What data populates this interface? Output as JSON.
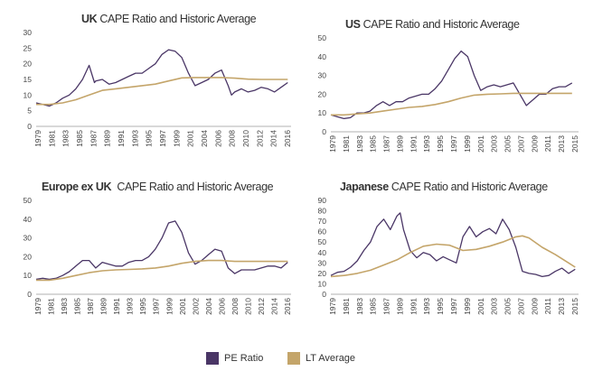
{
  "legend": {
    "pe_label": "PE Ratio",
    "lt_label": "LT Average",
    "pe_color": "#4a3666",
    "lt_color": "#c4a56a"
  },
  "chart_data": [
    {
      "type": "line",
      "title_bold": "UK",
      "title_rest": " CAPE Ratio and Historic Average",
      "ylim": [
        0,
        30
      ],
      "yticks": [
        0,
        5,
        10,
        15,
        20,
        25,
        30
      ],
      "xlim": [
        1979,
        2017.5
      ],
      "xticks": [
        "1979",
        "1981",
        "1983",
        "1985",
        "1987",
        "1989",
        "1991",
        "1993",
        "1995",
        "1997",
        "1999",
        "2001",
        "2004",
        "2006",
        "2008",
        "2010",
        "2012",
        "2014",
        "2016"
      ],
      "series": [
        {
          "name": "PE Ratio",
          "x": [
            1979,
            1980,
            1981,
            1982,
            1983,
            1984,
            1985,
            1986,
            1987,
            1987.8,
            1988,
            1989,
            1990,
            1991,
            1992,
            1993,
            1994,
            1995,
            1996,
            1997,
            1998,
            1999,
            2000,
            2001,
            2002,
            2003,
            2004,
            2005,
            2006,
            2007,
            2008,
            2008.5,
            2009,
            2010,
            2011,
            2012,
            2013,
            2014,
            2015,
            2016,
            2017
          ],
          "y": [
            7.5,
            7,
            6.5,
            7.5,
            9,
            10,
            12,
            15,
            19.5,
            14,
            14.5,
            15,
            13.5,
            14,
            15,
            16,
            17,
            17,
            18.5,
            20,
            23,
            24.5,
            24,
            22,
            17,
            13,
            14,
            15,
            17,
            18,
            13,
            10,
            11,
            12,
            11,
            11.5,
            12.5,
            12,
            11,
            12.5,
            14
          ]
        },
        {
          "name": "LT Average",
          "x": [
            1979,
            1981,
            1983,
            1985,
            1987,
            1989,
            1991,
            1993,
            1995,
            1997,
            1999,
            2001,
            2003,
            2005,
            2007,
            2009,
            2011,
            2013,
            2015,
            2017
          ],
          "y": [
            7,
            7,
            7.5,
            8.5,
            10,
            11.5,
            12,
            12.5,
            13,
            13.5,
            14.5,
            15.5,
            15.6,
            15.6,
            15.6,
            15.4,
            15.1,
            15,
            15,
            15
          ]
        }
      ]
    },
    {
      "type": "line",
      "title_bold": "US",
      "title_rest": " CAPE Ratio and Historic Average",
      "ylim": [
        0,
        50
      ],
      "yticks": [
        0,
        10,
        20,
        30,
        40,
        50
      ],
      "xlim": [
        1979,
        2017
      ],
      "xticks": [
        "1979",
        "1981",
        "1983",
        "1985",
        "1987",
        "1989",
        "1991",
        "1993",
        "1995",
        "1997",
        "1999",
        "2001",
        "2003",
        "2005",
        "2007",
        "2009",
        "2011",
        "2013",
        "2015"
      ],
      "series": [
        {
          "name": "PE Ratio",
          "x": [
            1979,
            1980,
            1981,
            1982,
            1983,
            1984,
            1985,
            1986,
            1987,
            1988,
            1989,
            1990,
            1991,
            1992,
            1993,
            1994,
            1995,
            1996,
            1997,
            1998,
            1999,
            2000,
            2001,
            2002,
            2003,
            2004,
            2005,
            2006,
            2007,
            2008,
            2009,
            2010,
            2011,
            2012,
            2013,
            2014,
            2015,
            2016
          ],
          "y": [
            9,
            8,
            7,
            7.5,
            10,
            10,
            11,
            14,
            16,
            14,
            16,
            16,
            18,
            19,
            20,
            20,
            23,
            27,
            33,
            39,
            43,
            40,
            30,
            22,
            24,
            25,
            24,
            25,
            26,
            20,
            14,
            17,
            20,
            20,
            23,
            24,
            24,
            26
          ]
        },
        {
          "name": "LT Average",
          "x": [
            1979,
            1981,
            1983,
            1985,
            1987,
            1989,
            1991,
            1993,
            1995,
            1997,
            1999,
            2001,
            2003,
            2005,
            2007,
            2009,
            2011,
            2013,
            2016
          ],
          "y": [
            9,
            9,
            9.5,
            10,
            11,
            12,
            13,
            13.5,
            14.5,
            16,
            18,
            19.5,
            20,
            20.2,
            20.5,
            20.5,
            20.5,
            20.5,
            20.5
          ]
        }
      ]
    },
    {
      "type": "line",
      "title_bold": "Europe ex UK",
      "title_rest": "  CAPE Ratio and Historic Average",
      "ylim": [
        0,
        50
      ],
      "yticks": [
        0,
        10,
        20,
        30,
        40,
        50
      ],
      "xlim": [
        1979,
        2017.5
      ],
      "xticks": [
        "1979",
        "1981",
        "1983",
        "1985",
        "1987",
        "1989",
        "1991",
        "1993",
        "1995",
        "1997",
        "1999",
        "2001",
        "2002",
        "2004",
        "2006",
        "2008",
        "2010",
        "2012",
        "2014",
        "2016"
      ],
      "series": [
        {
          "name": "PE Ratio",
          "x": [
            1979,
            1980,
            1981,
            1982,
            1983,
            1984,
            1985,
            1986,
            1987,
            1988,
            1989,
            1990,
            1991,
            1992,
            1993,
            1994,
            1995,
            1996,
            1997,
            1998,
            1999,
            2000,
            2001,
            2002,
            2003,
            2004,
            2005,
            2006,
            2007,
            2008,
            2009,
            2010,
            2011,
            2012,
            2013,
            2014,
            2015,
            2016,
            2017
          ],
          "y": [
            8,
            8.5,
            8,
            8.5,
            10,
            12,
            15,
            18,
            18,
            14,
            17,
            16,
            15,
            15,
            17,
            18,
            18,
            20,
            24,
            30,
            38,
            39,
            33,
            22,
            16,
            18,
            21,
            24,
            23,
            14,
            11,
            13,
            13,
            13,
            14,
            15,
            15,
            14,
            17
          ]
        },
        {
          "name": "LT Average",
          "x": [
            1979,
            1981,
            1983,
            1985,
            1987,
            1989,
            1991,
            1993,
            1995,
            1997,
            1999,
            2001,
            2003,
            2005,
            2007,
            2009,
            2011,
            2013,
            2015,
            2017
          ],
          "y": [
            7.5,
            7.5,
            8.5,
            10,
            11.5,
            12.5,
            13,
            13.2,
            13.5,
            14,
            15,
            16.5,
            17.5,
            18,
            18,
            17.5,
            17.5,
            17.5,
            17.5,
            17.5
          ]
        }
      ]
    },
    {
      "type": "line",
      "title_bold": "Japanese",
      "title_rest": " CAPE Ratio and Historic Average",
      "ylim": [
        0,
        90
      ],
      "yticks": [
        0,
        10,
        20,
        30,
        40,
        50,
        60,
        70,
        80,
        90
      ],
      "xlim": [
        1979,
        2016.5
      ],
      "xticks": [
        "1979",
        "1981",
        "1983",
        "1985",
        "1987",
        "1989",
        "1991",
        "1993",
        "1995",
        "1997",
        "1999",
        "2001",
        "2003",
        "2005",
        "2007",
        "2009",
        "2011",
        "2013",
        "2015"
      ],
      "series": [
        {
          "name": "PE Ratio",
          "x": [
            1979,
            1980,
            1981,
            1982,
            1983,
            1984,
            1985,
            1986,
            1987,
            1988,
            1989,
            1989.5,
            1990,
            1991,
            1992,
            1993,
            1994,
            1995,
            1996,
            1997,
            1998,
            1999,
            2000,
            2001,
            2002,
            2003,
            2004,
            2005,
            2006,
            2007,
            2008,
            2009,
            2010,
            2011,
            2012,
            2013,
            2014,
            2015,
            2016
          ],
          "y": [
            18,
            21,
            22,
            26,
            32,
            42,
            50,
            65,
            72,
            62,
            75,
            78,
            62,
            42,
            35,
            40,
            38,
            32,
            36,
            33,
            30,
            55,
            65,
            55,
            60,
            63,
            58,
            72,
            62,
            45,
            22,
            20,
            19,
            17,
            18,
            22,
            25,
            20,
            24
          ]
        },
        {
          "name": "LT Average",
          "x": [
            1979,
            1981,
            1983,
            1985,
            1987,
            1989,
            1991,
            1993,
            1995,
            1997,
            1999,
            2001,
            2003,
            2005,
            2007,
            2008,
            2009,
            2011,
            2013,
            2015,
            2016
          ],
          "y": [
            17,
            18,
            20,
            23,
            28,
            33,
            40,
            46,
            48,
            47,
            42,
            43,
            46,
            50,
            55,
            56,
            54,
            45,
            38,
            30,
            26
          ]
        }
      ]
    }
  ]
}
